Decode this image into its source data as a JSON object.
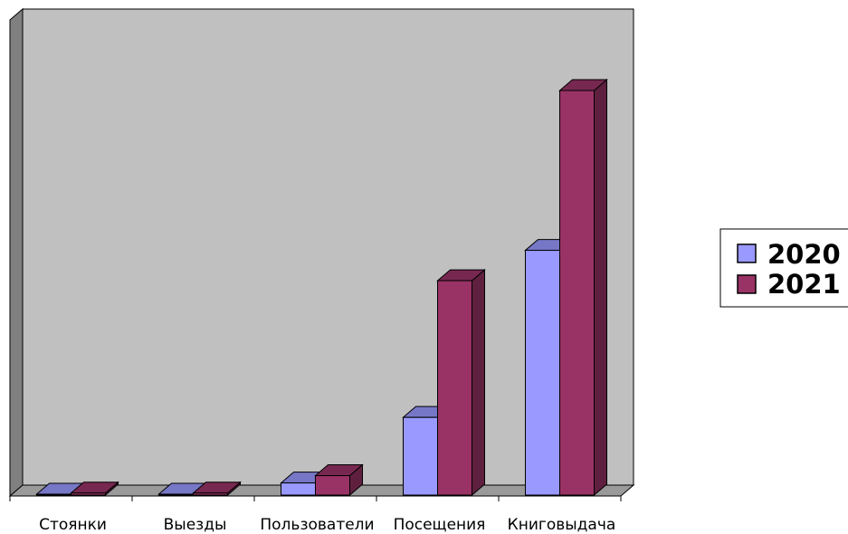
{
  "colors": {
    "wall": "#c0c0c0",
    "floor": "#9a9a9a",
    "side_wall": "#808080",
    "series_2020": "#9999ff",
    "series_2021": "#993366"
  },
  "legend": {
    "items": [
      {
        "label": "2020",
        "color": "#9999ff"
      },
      {
        "label": "2021",
        "color": "#993366"
      }
    ],
    "position": "right"
  },
  "chart_data": {
    "type": "bar",
    "style": "3d-clustered-column",
    "categories": [
      "Стоянки",
      "Выезды",
      "Пользователи",
      "Посещения",
      "Книговыдача"
    ],
    "series": [
      {
        "name": "2020",
        "values": [
          2,
          2,
          30,
          192,
          605
        ]
      },
      {
        "name": "2021",
        "values": [
          5,
          5,
          48,
          530,
          1000
        ]
      }
    ],
    "title": "",
    "xlabel": "",
    "ylabel": "",
    "ylim": [
      0,
      1100
    ],
    "grid": false,
    "legend": "right"
  }
}
